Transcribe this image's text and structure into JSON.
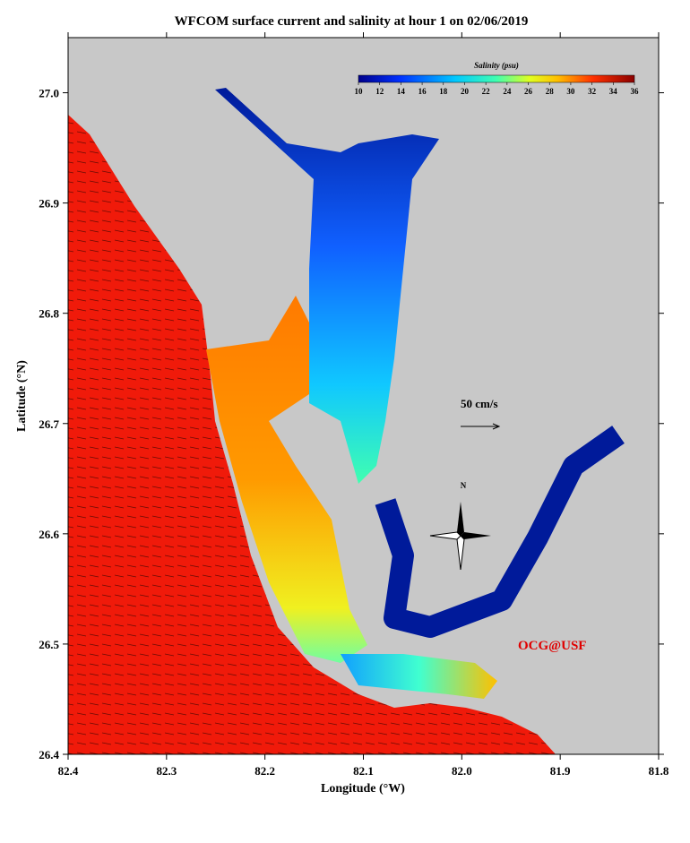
{
  "chart_data": {
    "type": "map",
    "title": "WFCOM surface current and salinity at hour 1 on 02/06/2019",
    "xlabel": "Longitude (°W)",
    "ylabel": "Latitude (°N)",
    "xlim": [
      82.4,
      81.8
    ],
    "ylim": [
      26.4,
      27.05
    ],
    "xticks": [
      82.4,
      82.3,
      82.2,
      82.1,
      {
        "value": 82.0,
        "label": "82.0"
      },
      81.9,
      81.8
    ],
    "yticks": [
      26.4,
      26.5,
      26.6,
      26.7,
      26.8,
      26.9,
      {
        "value": 27.0,
        "label": "27.0"
      }
    ],
    "colorbar": {
      "label": "Salinity (psu)",
      "lim": [
        10,
        36
      ],
      "ticks": [
        10,
        12,
        14,
        16,
        18,
        20,
        22,
        24,
        26,
        28,
        30,
        32,
        34,
        36
      ]
    },
    "scale_label": "50 cm/s",
    "credit": "OCG@USF",
    "north_label": "N"
  }
}
